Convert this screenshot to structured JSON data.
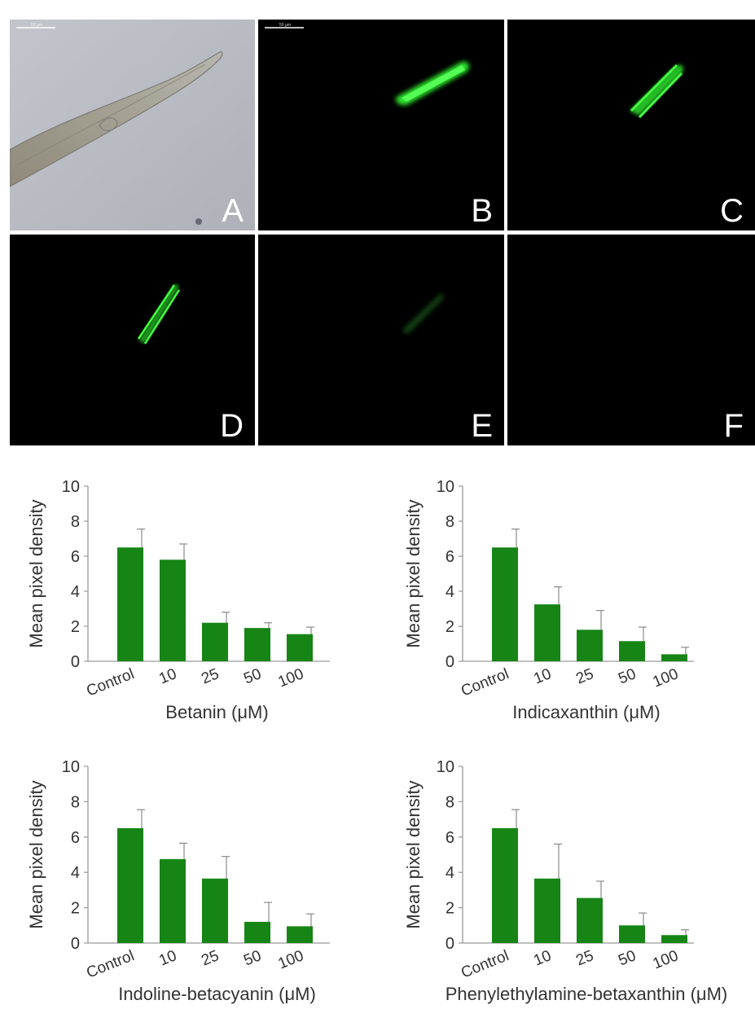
{
  "figure": {
    "micrographs": {
      "scale_bar_label": "50 µm",
      "panels": [
        {
          "letter": "A",
          "kind": "brightfield"
        },
        {
          "letter": "B",
          "kind": "fluorescence",
          "intensity": 1.0
        },
        {
          "letter": "C",
          "kind": "fluorescence",
          "intensity": 0.85
        },
        {
          "letter": "D",
          "kind": "fluorescence",
          "intensity": 0.75
        },
        {
          "letter": "E",
          "kind": "fluorescence",
          "intensity": 0.2
        },
        {
          "letter": "F",
          "kind": "fluorescence",
          "intensity": 0.0
        }
      ]
    }
  },
  "colors": {
    "bar": "#168516",
    "error": "#8a8a8a",
    "axis": "#9a9a9a",
    "fluor": "#33ff33"
  },
  "chart_data": [
    {
      "type": "bar",
      "categories": [
        "Control",
        "10",
        "25",
        "50",
        "100"
      ],
      "values": [
        6.5,
        5.8,
        2.2,
        1.9,
        1.55
      ],
      "errors": [
        1.05,
        0.9,
        0.6,
        0.3,
        0.4
      ],
      "xlabel": "Betanin (μM)",
      "ylabel": "Mean pixel density",
      "ylim": [
        0,
        10
      ],
      "yticks": [
        "0",
        "2",
        "4",
        "6",
        "8",
        "10"
      ]
    },
    {
      "type": "bar",
      "categories": [
        "Control",
        "10",
        "25",
        "50",
        "100"
      ],
      "values": [
        6.5,
        3.25,
        1.8,
        1.15,
        0.4
      ],
      "errors": [
        1.05,
        1.0,
        1.1,
        0.8,
        0.4
      ],
      "xlabel": "Indicaxanthin (μM)",
      "ylabel": "Mean pixel density",
      "ylim": [
        0,
        10
      ],
      "yticks": [
        "0",
        "2",
        "4",
        "6",
        "8",
        "10"
      ]
    },
    {
      "type": "bar",
      "categories": [
        "Control",
        "10",
        "25",
        "50",
        "100"
      ],
      "values": [
        6.5,
        4.75,
        3.65,
        1.2,
        0.95
      ],
      "errors": [
        1.05,
        0.9,
        1.25,
        1.1,
        0.7
      ],
      "xlabel": "Indoline-betacyanin (μM)",
      "ylabel": "Mean pixel density",
      "ylim": [
        0,
        10
      ],
      "yticks": [
        "0",
        "2",
        "4",
        "6",
        "8",
        "10"
      ]
    },
    {
      "type": "bar",
      "categories": [
        "Control",
        "10",
        "25",
        "50",
        "100"
      ],
      "values": [
        6.5,
        3.65,
        2.55,
        1.0,
        0.45
      ],
      "errors": [
        1.05,
        1.95,
        0.95,
        0.7,
        0.3
      ],
      "xlabel": "Phenylethylamine-betaxanthin (μM)",
      "ylabel": "Mean pixel density",
      "ylim": [
        0,
        10
      ],
      "yticks": [
        "0",
        "2",
        "4",
        "6",
        "8",
        "10"
      ]
    }
  ]
}
